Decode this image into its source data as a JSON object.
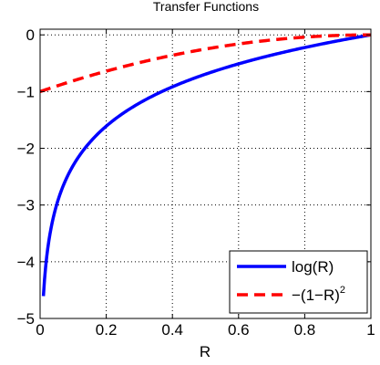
{
  "chart_data": {
    "type": "line",
    "title": "Transfer Functions",
    "xlabel": "R",
    "ylabel": "",
    "xlim": [
      0,
      1
    ],
    "ylim": [
      -5,
      0.1
    ],
    "xticks": [
      0,
      0.2,
      0.4,
      0.6,
      0.8,
      1
    ],
    "xtick_labels": [
      "0",
      "0.2",
      "0.4",
      "0.6",
      "0.8",
      "1"
    ],
    "yticks": [
      -5,
      -4,
      -3,
      -2,
      -1,
      0
    ],
    "ytick_labels": [
      "−5",
      "−4",
      "−3",
      "−2",
      "−1",
      "0"
    ],
    "grid": true,
    "grid_style": "dotted",
    "legend_position": "bottom-right",
    "series": [
      {
        "name": "log(R)",
        "color": "#0000ff",
        "style": "solid",
        "function": "ln(R)",
        "x_range": [
          0.01,
          1
        ]
      },
      {
        "name": "−(1−R)",
        "name_superscript": "2",
        "color": "#ff0000",
        "style": "dashed",
        "function": "-(1-R)^2",
        "x_range": [
          0,
          1
        ]
      }
    ]
  }
}
